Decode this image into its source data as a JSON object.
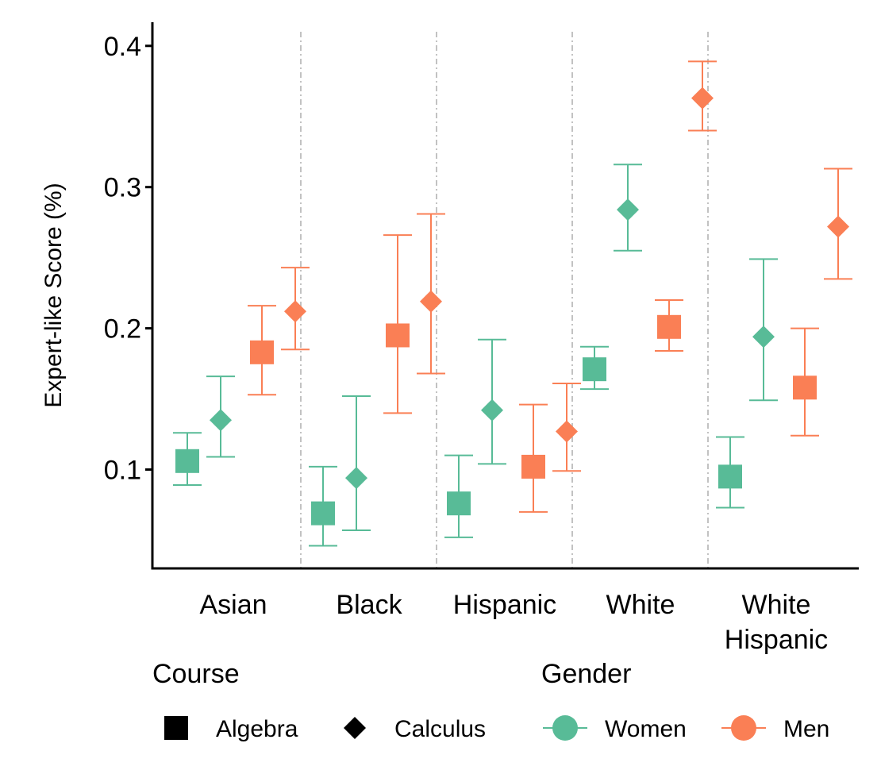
{
  "chart_data": {
    "type": "scatter",
    "ylabel": "Expert-like Score (%)",
    "xlabel": "",
    "title": "",
    "categories": [
      "Asian",
      "Black",
      "Hispanic",
      "White",
      "White Hispanic"
    ],
    "category_lines": [
      [
        "Asian"
      ],
      [
        "Black"
      ],
      [
        "Hispanic"
      ],
      [
        "White"
      ],
      [
        "White",
        "Hispanic"
      ]
    ],
    "ylim": [
      0.03,
      0.41
    ],
    "yticks": [
      0.1,
      0.2,
      0.3,
      0.4
    ],
    "ytick_labels": [
      "0.1",
      "0.2",
      "0.3",
      "0.4"
    ],
    "series": [
      {
        "course": "Algebra",
        "gender": "Women",
        "shape": "square",
        "color": "#58BB97",
        "values": [
          0.106,
          0.069,
          0.076,
          0.171,
          0.095
        ],
        "lower": [
          0.089,
          0.046,
          0.052,
          0.157,
          0.073
        ],
        "upper": [
          0.126,
          0.102,
          0.11,
          0.187,
          0.123
        ]
      },
      {
        "course": "Calculus",
        "gender": "Women",
        "shape": "diamond",
        "color": "#58BB97",
        "values": [
          0.135,
          0.094,
          0.142,
          0.284,
          0.194
        ],
        "lower": [
          0.109,
          0.057,
          0.104,
          0.255,
          0.149
        ],
        "upper": [
          0.166,
          0.152,
          0.192,
          0.316,
          0.249
        ]
      },
      {
        "course": "Algebra",
        "gender": "Men",
        "shape": "square",
        "color": "#FA7F55",
        "values": [
          0.183,
          0.195,
          0.102,
          0.201,
          0.158
        ],
        "lower": [
          0.153,
          0.14,
          0.07,
          0.184,
          0.124
        ],
        "upper": [
          0.216,
          0.266,
          0.146,
          0.22,
          0.2
        ]
      },
      {
        "course": "Calculus",
        "gender": "Men",
        "shape": "diamond",
        "color": "#FA7F55",
        "values": [
          0.212,
          0.219,
          0.127,
          0.363,
          0.272
        ],
        "lower": [
          0.185,
          0.168,
          0.099,
          0.34,
          0.235
        ],
        "upper": [
          0.243,
          0.281,
          0.161,
          0.389,
          0.313
        ]
      }
    ],
    "legend": {
      "position": "bottom",
      "course_title": "Course",
      "course_items": [
        {
          "label": "Algebra",
          "shape": "square"
        },
        {
          "label": "Calculus",
          "shape": "diamond"
        }
      ],
      "gender_title": "Gender",
      "gender_items": [
        {
          "label": "Women",
          "color": "#58BB97"
        },
        {
          "label": "Men",
          "color": "#FA7F55"
        }
      ]
    },
    "grid": false,
    "separator_lines": true
  }
}
